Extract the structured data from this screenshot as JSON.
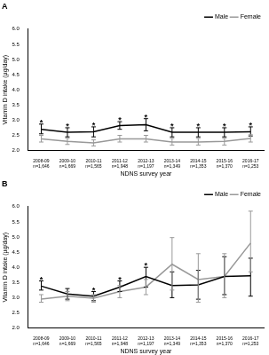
{
  "chart_data": [
    {
      "type": "line",
      "title": "A",
      "x_label": "NDNS survey year",
      "y_label": "Vitamin D intake (µg/day)",
      "categories": [
        [
          "2008-09",
          "n=1,646"
        ],
        [
          "2009-10",
          "n=1,669"
        ],
        [
          "2010-11",
          "n=1,565"
        ],
        [
          "2011-12",
          "n=1,948"
        ],
        [
          "2012-13",
          "n=1,197"
        ],
        [
          "2013-14",
          "n=1,349"
        ],
        [
          "2014-15",
          "n=1,353"
        ],
        [
          "2015-16",
          "n=1,370"
        ],
        [
          "2016-17",
          "n=1,253"
        ]
      ],
      "series": [
        {
          "name": "Male",
          "color": "#000000",
          "values": [
            2.7,
            2.6,
            2.62,
            2.82,
            2.85,
            2.6,
            2.6,
            2.6,
            2.62
          ],
          "error_low": [
            2.55,
            2.45,
            2.45,
            2.7,
            2.65,
            2.45,
            2.45,
            2.45,
            2.48
          ],
          "error_high": [
            2.87,
            2.75,
            2.78,
            2.95,
            3.05,
            2.75,
            2.75,
            2.75,
            2.78
          ]
        },
        {
          "name": "Female",
          "color": "#999999",
          "values": [
            2.38,
            2.3,
            2.25,
            2.38,
            2.38,
            2.28,
            2.28,
            2.3,
            2.4
          ],
          "error_low": [
            2.28,
            2.2,
            2.15,
            2.28,
            2.28,
            2.18,
            2.18,
            2.18,
            2.28
          ],
          "error_high": [
            2.5,
            2.4,
            2.35,
            2.5,
            2.5,
            2.4,
            2.4,
            2.4,
            2.52
          ]
        }
      ],
      "ylim": [
        2,
        6
      ],
      "yticks": [
        {
          "value": 2,
          "label": "2.0"
        },
        2.5,
        {
          "value": 3,
          "label": "3.0"
        },
        3.5,
        {
          "value": 4,
          "label": "4.0"
        },
        4.5,
        {
          "value": 5,
          "label": "5.0"
        },
        5.5,
        {
          "value": 6,
          "label": "6.0"
        }
      ],
      "grid": false,
      "legend": "top-right",
      "annotations": [
        {
          "x": "2008-09",
          "text": "*"
        },
        {
          "x": "2009-10",
          "text": "*"
        },
        {
          "x": "2010-11",
          "text": "*"
        },
        {
          "x": "2011-12",
          "text": "*"
        },
        {
          "x": "2012-13",
          "text": "*"
        },
        {
          "x": "2013-14",
          "text": "*"
        },
        {
          "x": "2014-15",
          "text": "*"
        },
        {
          "x": "2015-16",
          "text": "*"
        },
        {
          "x": "2016-17",
          "text": "*"
        }
      ]
    },
    {
      "type": "line",
      "title": "B",
      "x_label": "NDNS survey year",
      "y_label": "Vitamin D intake (µg/day)",
      "categories": [
        [
          "2008-09",
          "n=1,646"
        ],
        [
          "2009-10",
          "n=1,669"
        ],
        [
          "2010-11",
          "n=1,565"
        ],
        [
          "2011-12",
          "n=1,948"
        ],
        [
          "2012-13",
          "n=1,197"
        ],
        [
          "2013-14",
          "n=1,349"
        ],
        [
          "2014-15",
          "n=1,353"
        ],
        [
          "2015-16",
          "n=1,370"
        ],
        [
          "2016-17",
          "n=1,253"
        ]
      ],
      "series": [
        {
          "name": "Male",
          "color": "#000000",
          "values": [
            3.38,
            3.12,
            3.05,
            3.35,
            3.7,
            3.4,
            3.42,
            3.7,
            3.72
          ],
          "error_low": [
            3.25,
            2.95,
            2.9,
            3.2,
            3.35,
            3.0,
            2.95,
            3.1,
            3.05
          ],
          "error_high": [
            3.55,
            3.3,
            3.2,
            3.55,
            4.0,
            3.85,
            3.9,
            4.35,
            4.3
          ]
        },
        {
          "name": "Female",
          "color": "#999999",
          "values": [
            2.95,
            3.05,
            2.98,
            3.2,
            3.35,
            4.1,
            3.6,
            3.7,
            4.8
          ],
          "error_low": [
            2.85,
            2.9,
            2.85,
            3.0,
            3.1,
            3.25,
            2.85,
            3.0,
            3.85
          ],
          "error_high": [
            3.1,
            3.2,
            3.1,
            3.4,
            3.6,
            4.98,
            4.45,
            4.45,
            5.85
          ]
        }
      ],
      "ylim": [
        2,
        6
      ],
      "yticks": [
        {
          "value": 2,
          "label": "2.0"
        },
        2.5,
        {
          "value": 3,
          "label": "3.0"
        },
        3.5,
        {
          "value": 4,
          "label": "4.0"
        },
        4.5,
        {
          "value": 5,
          "label": "5.0"
        },
        5.5,
        {
          "value": 6,
          "label": "6.0"
        }
      ],
      "grid": false,
      "legend": "top-right",
      "annotations": [
        {
          "x": "2008-09",
          "text": "*"
        },
        {
          "x": "2010-11",
          "text": "*"
        },
        {
          "x": "2011-12",
          "text": "*"
        },
        {
          "x": "2012-13",
          "text": "*"
        }
      ]
    }
  ]
}
